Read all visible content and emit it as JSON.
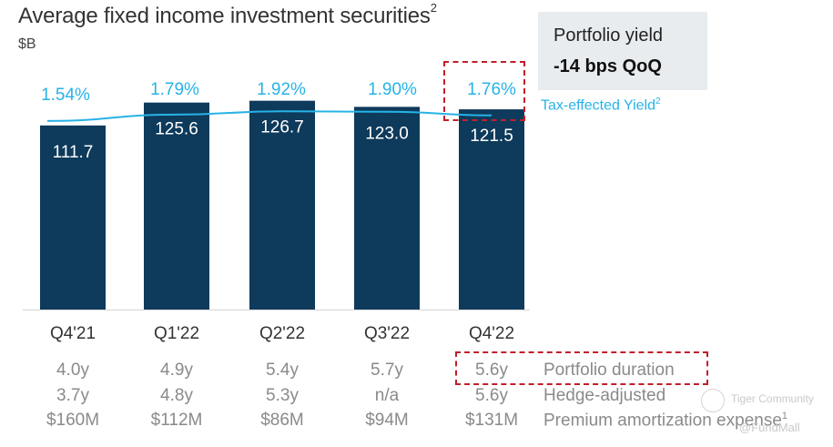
{
  "chart_data": {
    "type": "bar",
    "title": "Average fixed income investment securities",
    "title_footnote": "2",
    "unit": "$B",
    "categories": [
      "Q4'21",
      "Q1'22",
      "Q2'22",
      "Q3'22",
      "Q4'22"
    ],
    "values": [
      111.7,
      125.6,
      126.7,
      123.0,
      121.5
    ],
    "value_labels": [
      "111.7",
      "125.6",
      "126.7",
      "123.0",
      "121.5"
    ],
    "ylim": [
      0,
      140
    ],
    "line_series": {
      "name": "Tax-effected Yield",
      "footnote": "2",
      "values": [
        1.54,
        1.79,
        1.92,
        1.9,
        1.76
      ],
      "labels": [
        "1.54%",
        "1.79%",
        "1.92%",
        "1.90%",
        "1.76%"
      ]
    },
    "colors": {
      "bar": "#0e3a5b",
      "line": "#27b3e6",
      "highlight": "#c0202a"
    }
  },
  "callout": {
    "line1": "Portfolio yield",
    "line2": "-14 bps QoQ"
  },
  "rows": [
    {
      "label": "Portfolio duration",
      "footnote": "",
      "values": [
        "4.0y",
        "4.9y",
        "5.4y",
        "5.7y",
        "5.6y"
      ]
    },
    {
      "label": "Hedge-adjusted",
      "footnote": "",
      "values": [
        "3.7y",
        "4.8y",
        "5.3y",
        "n/a",
        "5.6y"
      ]
    },
    {
      "label": "Premium amortization expense",
      "footnote": "1",
      "values": [
        "$160M",
        "$112M",
        "$86M",
        "$94M",
        "$131M"
      ]
    }
  ],
  "watermark": {
    "line1": "Tiger Community",
    "line2": "@FundMall"
  }
}
